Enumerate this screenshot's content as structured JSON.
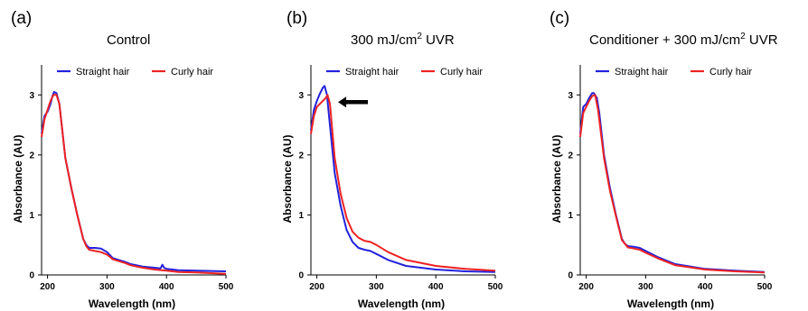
{
  "colors": {
    "straight": "#2222dd",
    "curly": "#ee2222"
  },
  "panels": [
    {
      "letter": "(a)",
      "title_pre": "Control",
      "title_sup": "",
      "title_post": ""
    },
    {
      "letter": "(b)",
      "title_pre": "300 mJ/cm",
      "title_sup": "2",
      "title_post": " UVR"
    },
    {
      "letter": "(c)",
      "title_pre": "Conditioner + 300 mJ/cm",
      "title_sup": "2",
      "title_post": " UVR"
    }
  ],
  "chart_data": [
    {
      "type": "line",
      "title": "Control",
      "xlabel": "Wavelength (nm)",
      "ylabel": "Absorbance (AU)",
      "xlim": [
        190,
        500
      ],
      "ylim": [
        0,
        3.5
      ],
      "xticks": [
        200,
        300,
        400,
        500
      ],
      "yticks": [
        0,
        1,
        2,
        3
      ],
      "legend": "top",
      "series": [
        {
          "name": "Straight hair",
          "color_key": "straight",
          "x": [
            190,
            195,
            200,
            205,
            208,
            211,
            215,
            220,
            230,
            240,
            250,
            260,
            265,
            270,
            280,
            290,
            300,
            310,
            320,
            330,
            340,
            350,
            360,
            380,
            390,
            393,
            396,
            400,
            420,
            450,
            500
          ],
          "y": [
            2.35,
            2.65,
            2.72,
            2.85,
            2.97,
            3.05,
            3.03,
            2.85,
            1.95,
            1.45,
            1.0,
            0.6,
            0.5,
            0.45,
            0.45,
            0.44,
            0.38,
            0.28,
            0.25,
            0.22,
            0.18,
            0.16,
            0.14,
            0.12,
            0.11,
            0.17,
            0.12,
            0.1,
            0.08,
            0.07,
            0.06
          ]
        },
        {
          "name": "Curly hair",
          "color_key": "curly",
          "x": [
            190,
            195,
            200,
            205,
            210,
            215,
            220,
            230,
            240,
            250,
            260,
            265,
            270,
            280,
            290,
            300,
            310,
            320,
            330,
            340,
            350,
            360,
            380,
            400,
            420,
            450,
            500
          ],
          "y": [
            2.3,
            2.6,
            2.75,
            2.9,
            3.0,
            3.0,
            2.85,
            1.95,
            1.45,
            1.0,
            0.6,
            0.48,
            0.42,
            0.4,
            0.38,
            0.34,
            0.26,
            0.23,
            0.2,
            0.16,
            0.14,
            0.12,
            0.09,
            0.07,
            0.05,
            0.04,
            0.02
          ]
        }
      ]
    },
    {
      "type": "line",
      "title": "300 mJ/cm2 UVR",
      "xlabel": "Wavelength (nm)",
      "ylabel": "Absorbance (AU)",
      "xlim": [
        190,
        500
      ],
      "ylim": [
        0,
        3.5
      ],
      "xticks": [
        200,
        300,
        400,
        500
      ],
      "yticks": [
        0,
        1,
        2,
        3
      ],
      "legend": "top",
      "annotations": [
        {
          "type": "arrow",
          "direction": "left",
          "points_to": "peak near 220 nm"
        }
      ],
      "series": [
        {
          "name": "Straight hair",
          "color_key": "straight",
          "x": [
            190,
            195,
            200,
            205,
            210,
            213,
            217,
            220,
            230,
            240,
            250,
            260,
            270,
            280,
            290,
            300,
            320,
            350,
            400,
            450,
            500
          ],
          "y": [
            2.4,
            2.75,
            2.9,
            3.02,
            3.12,
            3.15,
            3.0,
            2.7,
            1.7,
            1.15,
            0.75,
            0.55,
            0.45,
            0.42,
            0.4,
            0.35,
            0.25,
            0.15,
            0.09,
            0.06,
            0.05
          ]
        },
        {
          "name": "Curly hair",
          "color_key": "curly",
          "x": [
            190,
            195,
            200,
            205,
            210,
            215,
            218,
            222,
            230,
            240,
            250,
            260,
            270,
            280,
            290,
            300,
            320,
            350,
            400,
            450,
            500
          ],
          "y": [
            2.35,
            2.65,
            2.8,
            2.85,
            2.9,
            2.95,
            3.0,
            2.85,
            1.95,
            1.35,
            0.95,
            0.72,
            0.62,
            0.57,
            0.55,
            0.5,
            0.38,
            0.25,
            0.15,
            0.1,
            0.07
          ]
        }
      ]
    },
    {
      "type": "line",
      "title": "Conditioner + 300 mJ/cm2 UVR",
      "xlabel": "Wavelength (nm)",
      "ylabel": "Absorbance (AU)",
      "xlim": [
        190,
        500
      ],
      "ylim": [
        0,
        3.5
      ],
      "xticks": [
        200,
        300,
        400,
        500
      ],
      "yticks": [
        0,
        1,
        2,
        3
      ],
      "legend": "top",
      "series": [
        {
          "name": "Straight hair",
          "color_key": "straight",
          "x": [
            190,
            195,
            200,
            205,
            210,
            213,
            218,
            222,
            230,
            240,
            250,
            260,
            265,
            270,
            280,
            290,
            300,
            320,
            340,
            350,
            400,
            450,
            500
          ],
          "y": [
            2.35,
            2.8,
            2.85,
            2.95,
            3.03,
            3.03,
            2.95,
            2.7,
            2.0,
            1.45,
            1.0,
            0.6,
            0.52,
            0.48,
            0.47,
            0.45,
            0.4,
            0.3,
            0.22,
            0.18,
            0.1,
            0.07,
            0.05
          ]
        },
        {
          "name": "Curly hair",
          "color_key": "curly",
          "x": [
            190,
            195,
            200,
            205,
            210,
            215,
            220,
            230,
            240,
            250,
            260,
            270,
            280,
            290,
            300,
            320,
            340,
            350,
            400,
            450,
            500
          ],
          "y": [
            2.3,
            2.7,
            2.8,
            2.9,
            2.98,
            3.0,
            2.75,
            1.95,
            1.4,
            0.98,
            0.58,
            0.46,
            0.44,
            0.42,
            0.37,
            0.28,
            0.2,
            0.16,
            0.09,
            0.06,
            0.04
          ]
        }
      ]
    }
  ]
}
